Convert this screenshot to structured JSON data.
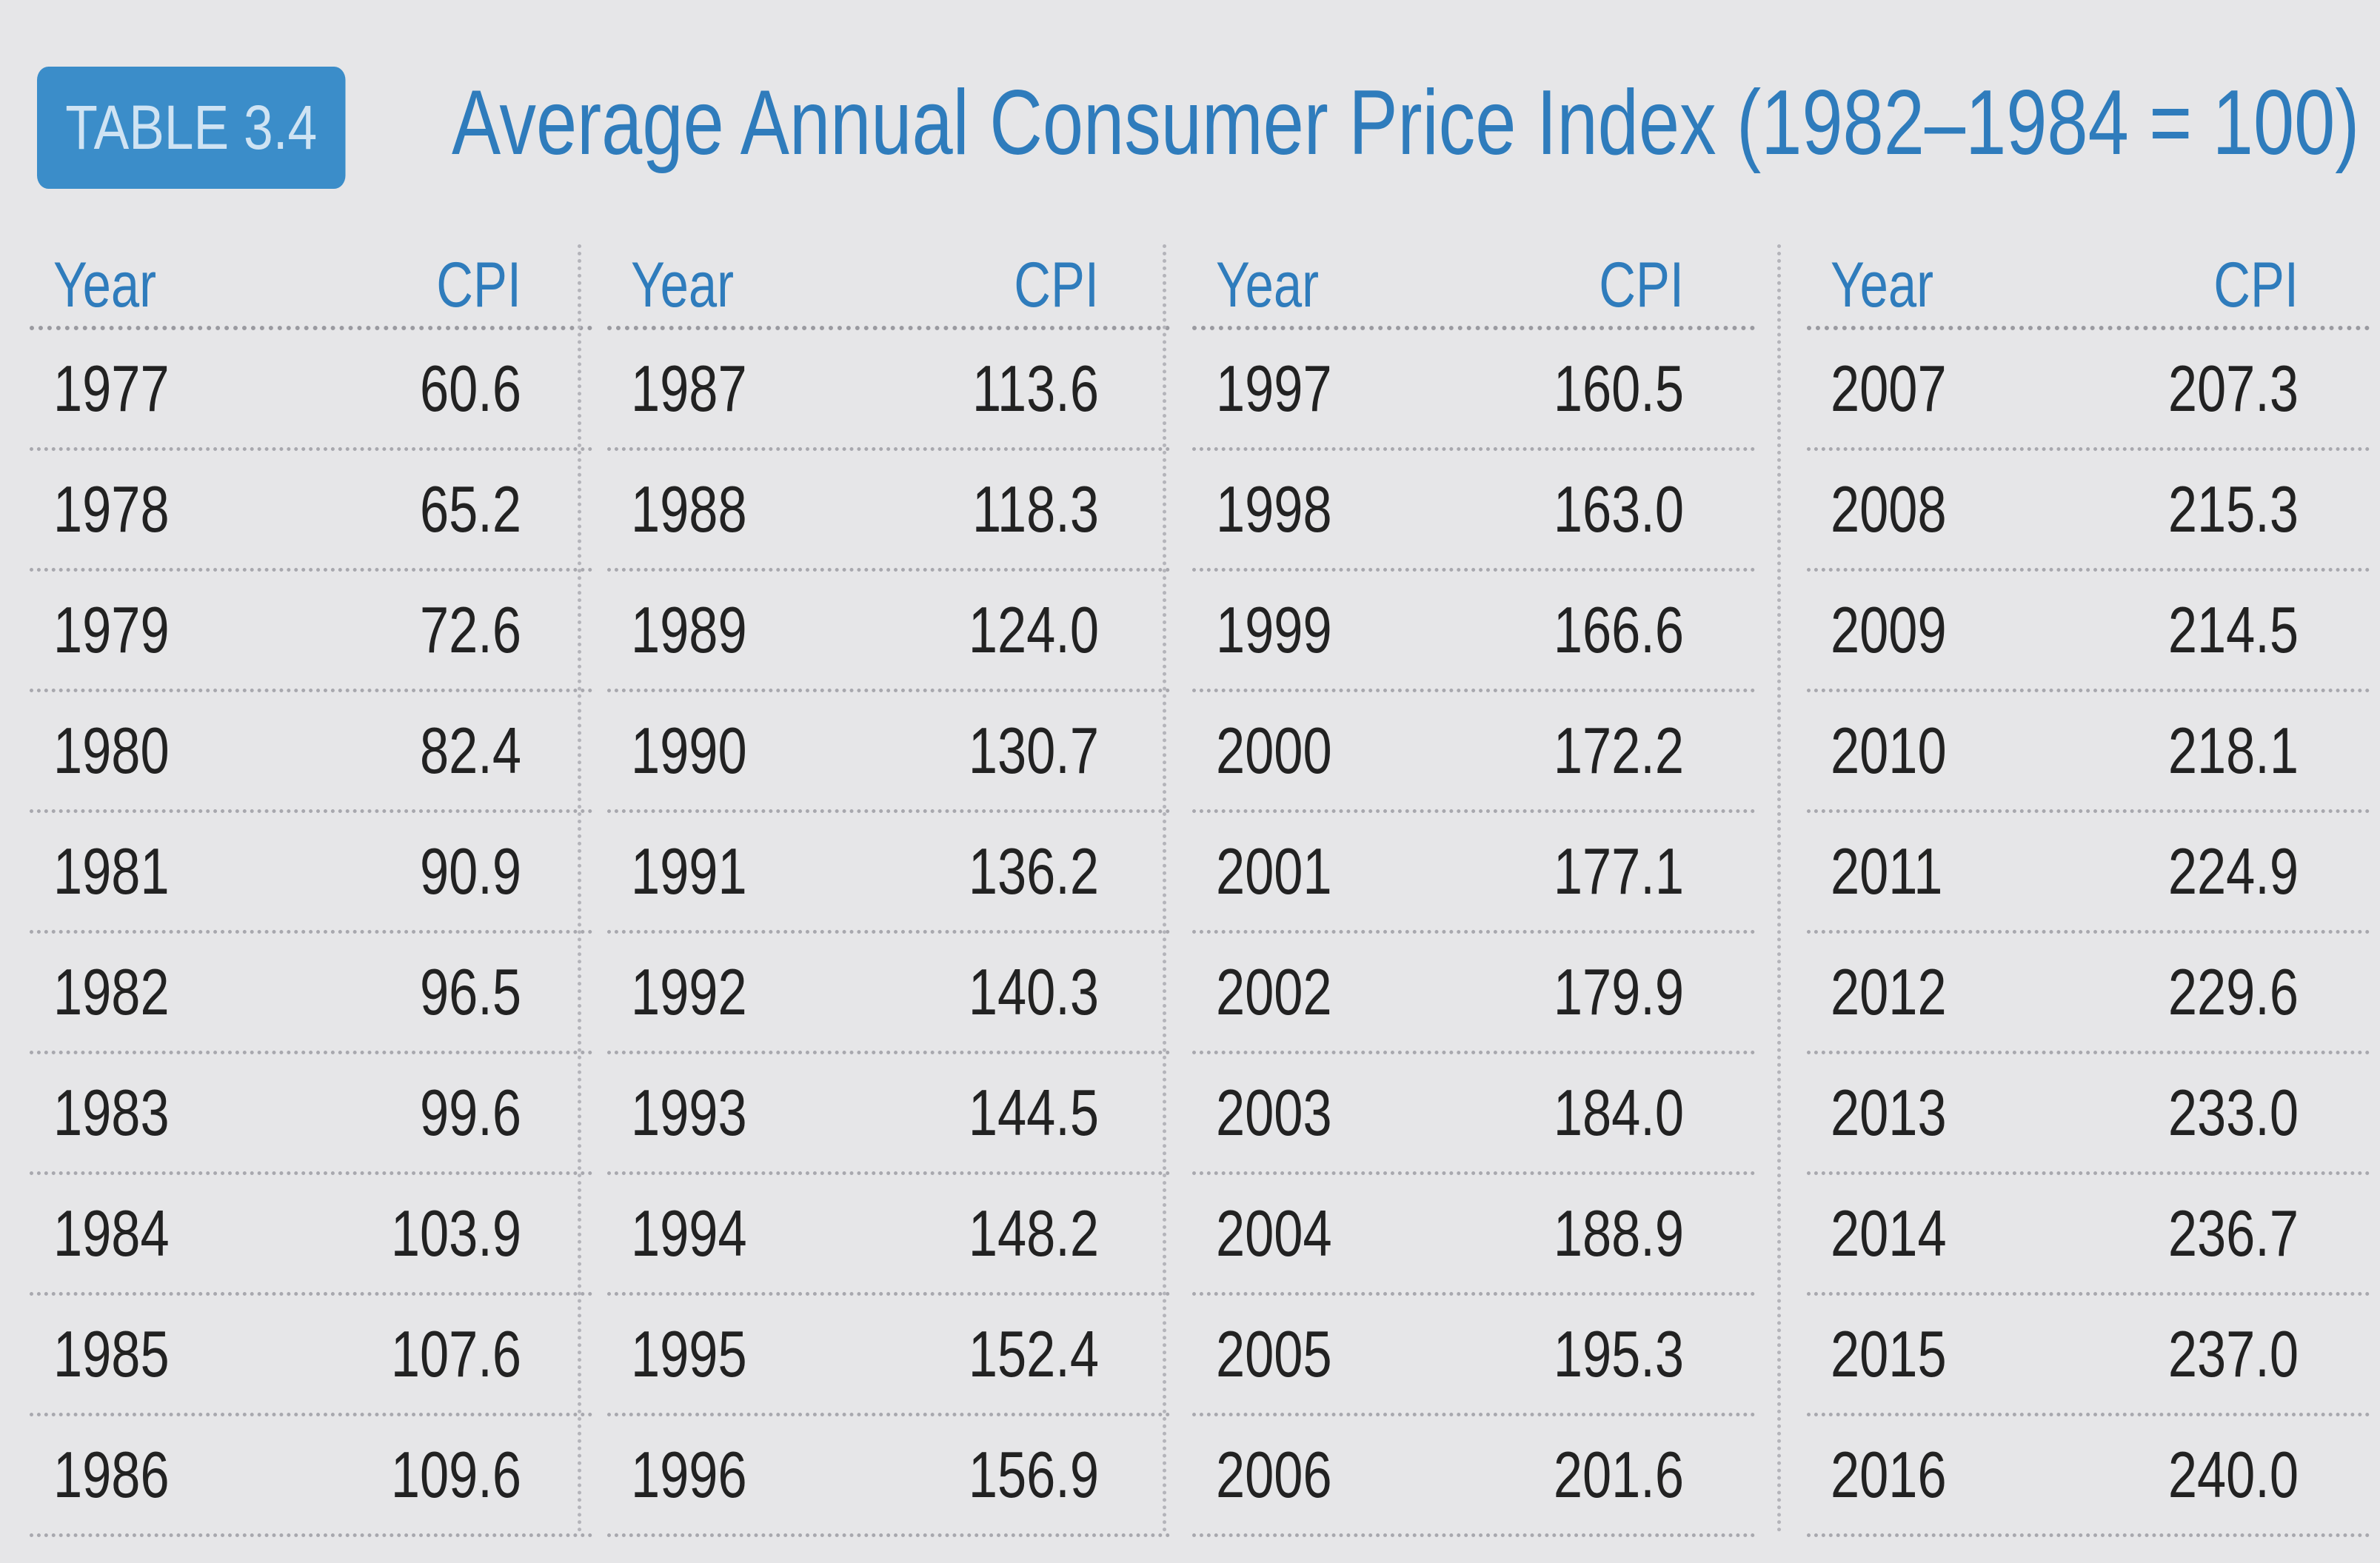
{
  "table": {
    "label": "TABLE 3.4",
    "title": "Average Annual Consumer Price Index (1982–1984 = 100)",
    "col_year": "Year",
    "col_cpi": "CPI",
    "groups": [
      [
        [
          "1977",
          "60.6"
        ],
        [
          "1978",
          "65.2"
        ],
        [
          "1979",
          "72.6"
        ],
        [
          "1980",
          "82.4"
        ],
        [
          "1981",
          "90.9"
        ],
        [
          "1982",
          "96.5"
        ],
        [
          "1983",
          "99.6"
        ],
        [
          "1984",
          "103.9"
        ],
        [
          "1985",
          "107.6"
        ],
        [
          "1986",
          "109.6"
        ]
      ],
      [
        [
          "1987",
          "113.6"
        ],
        [
          "1988",
          "118.3"
        ],
        [
          "1989",
          "124.0"
        ],
        [
          "1990",
          "130.7"
        ],
        [
          "1991",
          "136.2"
        ],
        [
          "1992",
          "140.3"
        ],
        [
          "1993",
          "144.5"
        ],
        [
          "1994",
          "148.2"
        ],
        [
          "1995",
          "152.4"
        ],
        [
          "1996",
          "156.9"
        ]
      ],
      [
        [
          "1997",
          "160.5"
        ],
        [
          "1998",
          "163.0"
        ],
        [
          "1999",
          "166.6"
        ],
        [
          "2000",
          "172.2"
        ],
        [
          "2001",
          "177.1"
        ],
        [
          "2002",
          "179.9"
        ],
        [
          "2003",
          "184.0"
        ],
        [
          "2004",
          "188.9"
        ],
        [
          "2005",
          "195.3"
        ],
        [
          "2006",
          "201.6"
        ]
      ],
      [
        [
          "2007",
          "207.3"
        ],
        [
          "2008",
          "215.3"
        ],
        [
          "2009",
          "214.5"
        ],
        [
          "2010",
          "218.1"
        ],
        [
          "2011",
          "224.9"
        ],
        [
          "2012",
          "229.6"
        ],
        [
          "2013",
          "233.0"
        ],
        [
          "2014",
          "236.7"
        ],
        [
          "2015",
          "237.0"
        ],
        [
          "2016",
          "240.0"
        ]
      ]
    ]
  }
}
